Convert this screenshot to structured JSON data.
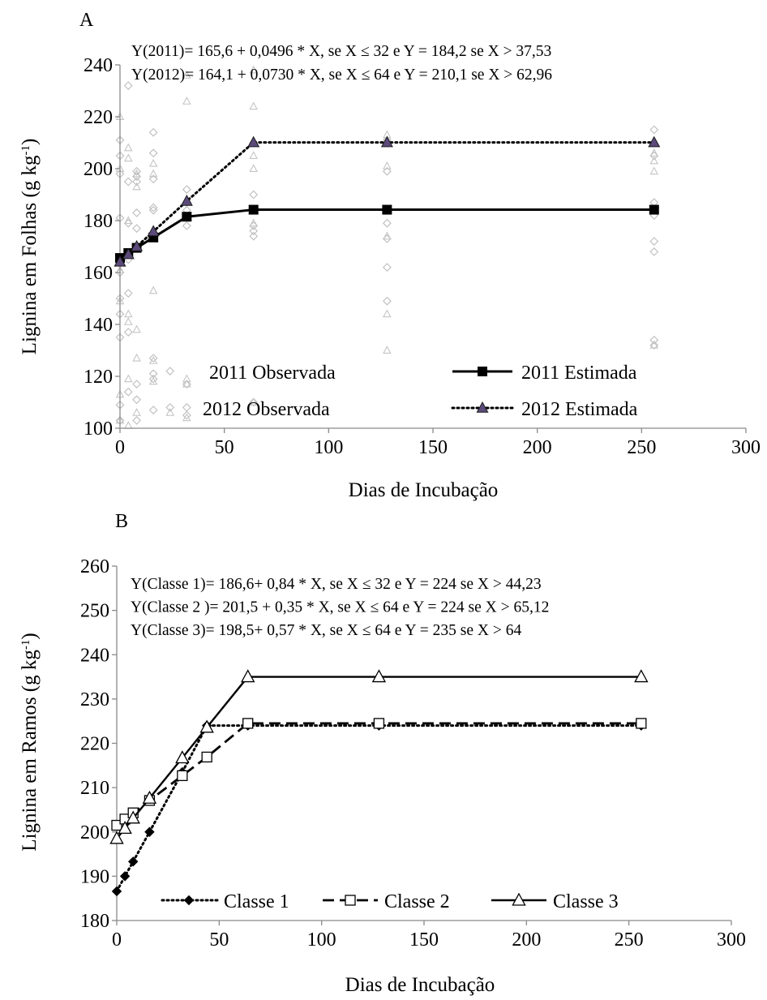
{
  "chart_data": [
    {
      "type": "scatter",
      "panel_label": "A",
      "xlabel": "Dias de Incubação",
      "ylabel": "Lignina em Folhas (g kg-1)",
      "ylabel_main": "Lignina em Folhas (g kg",
      "ylabel_sup": "-1",
      "ylabel_end": ")",
      "xlim": [
        0,
        300
      ],
      "ylim": [
        100,
        240
      ],
      "xticks": [
        0,
        50,
        100,
        150,
        200,
        250,
        300
      ],
      "yticks": [
        100,
        120,
        140,
        160,
        180,
        200,
        220,
        240
      ],
      "grid": false,
      "legend_position": "bottom",
      "equations": [
        "Y(2011)= 165,6 + 0,0496 * X, se X ≤ 32 e Y = 184,2 se X > 37,53",
        "Y(2012)= 164,1 + 0,0730 * X, se X ≤ 64 e Y = 210,1 se  X > 62,96"
      ],
      "observed": [
        {
          "name": "2011 Observada",
          "marker": "diamond",
          "color": "#bdbdbd",
          "points": [
            [
              0,
              103
            ],
            [
              0,
              109
            ],
            [
              0,
              135
            ],
            [
              0,
              144
            ],
            [
              0,
              150
            ],
            [
              0,
              160
            ],
            [
              0,
              181
            ],
            [
              0,
              198
            ],
            [
              0,
              205
            ],
            [
              0,
              211
            ],
            [
              4,
              114
            ],
            [
              4,
              137
            ],
            [
              4,
              152
            ],
            [
              4,
              165
            ],
            [
              4,
              179
            ],
            [
              4,
              195
            ],
            [
              4,
              232
            ],
            [
              8,
              103
            ],
            [
              8,
              111
            ],
            [
              8,
              117
            ],
            [
              8,
              170
            ],
            [
              8,
              177
            ],
            [
              8,
              183
            ],
            [
              8,
              195
            ],
            [
              8,
              197
            ],
            [
              8,
              199
            ],
            [
              16,
              107
            ],
            [
              16,
              119
            ],
            [
              16,
              121
            ],
            [
              16,
              127
            ],
            [
              16,
              184
            ],
            [
              16,
              185
            ],
            [
              16,
              196
            ],
            [
              16,
              206
            ],
            [
              16,
              214
            ],
            [
              24,
              108
            ],
            [
              24,
              122
            ],
            [
              32,
              105
            ],
            [
              32,
              108
            ],
            [
              32,
              117
            ],
            [
              32,
              178
            ],
            [
              32,
              184
            ],
            [
              32,
              187
            ],
            [
              32,
              192
            ],
            [
              64,
              110
            ],
            [
              64,
              174
            ],
            [
              64,
              176
            ],
            [
              64,
              178
            ],
            [
              64,
              190
            ],
            [
              64,
              210
            ],
            [
              128,
              149
            ],
            [
              128,
              162
            ],
            [
              128,
              173
            ],
            [
              128,
              179
            ],
            [
              128,
              199
            ],
            [
              128,
              211
            ],
            [
              256,
              132
            ],
            [
              256,
              134
            ],
            [
              256,
              168
            ],
            [
              256,
              172
            ],
            [
              256,
              182
            ],
            [
              256,
              187
            ],
            [
              256,
              205
            ],
            [
              256,
              215
            ]
          ]
        },
        {
          "name": "2012 Observada",
          "marker": "triangle",
          "color": "#c4c4c4",
          "points": [
            [
              0,
              103
            ],
            [
              0,
              113
            ],
            [
              0,
              149
            ],
            [
              0,
              161
            ],
            [
              0,
              200
            ],
            [
              0,
              220
            ],
            [
              4,
              101
            ],
            [
              4,
              119
            ],
            [
              4,
              141
            ],
            [
              4,
              144
            ],
            [
              4,
              180
            ],
            [
              4,
              204
            ],
            [
              4,
              208
            ],
            [
              8,
              106
            ],
            [
              8,
              127
            ],
            [
              8,
              138
            ],
            [
              8,
              193
            ],
            [
              8,
              198
            ],
            [
              16,
              118
            ],
            [
              16,
              126
            ],
            [
              16,
              153
            ],
            [
              16,
              198
            ],
            [
              16,
              202
            ],
            [
              24,
              106
            ],
            [
              32,
              104
            ],
            [
              32,
              117
            ],
            [
              32,
              119
            ],
            [
              32,
              226
            ],
            [
              32,
              236
            ],
            [
              64,
              110
            ],
            [
              64,
              179
            ],
            [
              64,
              200
            ],
            [
              64,
              205
            ],
            [
              64,
              224
            ],
            [
              64,
              238
            ],
            [
              128,
              130
            ],
            [
              128,
              144
            ],
            [
              128,
              174
            ],
            [
              128,
              201
            ],
            [
              128,
              213
            ],
            [
              256,
              132
            ],
            [
              256,
              199
            ],
            [
              256,
              203
            ],
            [
              256,
              206
            ],
            [
              256,
              210
            ]
          ]
        }
      ],
      "series": [
        {
          "name": "2011 Estimada",
          "marker": "square",
          "line": "solid",
          "x": [
            0,
            4,
            8,
            16,
            32,
            64,
            128,
            256
          ],
          "y": [
            165.6,
            167.5,
            169.5,
            173.5,
            181.5,
            184.2,
            184.2,
            184.2
          ]
        },
        {
          "name": "2012 Estimada",
          "marker": "triangle",
          "line": "dotted",
          "x": [
            0,
            4,
            8,
            16,
            32,
            64,
            128,
            256
          ],
          "y": [
            164.1,
            167.0,
            170.0,
            175.8,
            187.5,
            210.1,
            210.1,
            210.1
          ]
        }
      ]
    },
    {
      "type": "line",
      "panel_label": "B",
      "xlabel": "Dias de Incubação",
      "ylabel": "Lignina em  Ramos (g kg-1)",
      "ylabel_main": "Lignina em  Ramos (g kg",
      "ylabel_sup": "-1",
      "ylabel_end": ")",
      "xlim": [
        0,
        300
      ],
      "ylim": [
        180,
        260
      ],
      "xticks": [
        0,
        50,
        100,
        150,
        200,
        250,
        300
      ],
      "yticks": [
        180,
        190,
        200,
        210,
        220,
        230,
        240,
        250,
        260
      ],
      "grid": false,
      "legend_position": "bottom",
      "equations": [
        "Y(Classe 1)= 186,6+ 0,84 * X, se X ≤ 32 e Y = 224 se X > 44,23",
        "Y(Classe 2 )= 201,5 + 0,35 * X, se X ≤ 64 e Y = 224 se  X > 65,12",
        "Y(Classe 3)= 198,5+ 0,57 * X, se X ≤ 64 e Y = 235 se  X > 64"
      ],
      "series": [
        {
          "name": "Classe 1",
          "marker": "diamond",
          "line": "dotted",
          "x": [
            0,
            4,
            8,
            16,
            32,
            44,
            64,
            128,
            256
          ],
          "y": [
            186.6,
            190.0,
            193.3,
            200.0,
            213.5,
            224,
            224,
            224,
            224
          ]
        },
        {
          "name": "Classe  2",
          "marker": "open-square",
          "line": "dashed",
          "x": [
            0,
            4,
            8,
            16,
            32,
            44,
            64,
            128,
            256
          ],
          "y": [
            201.5,
            202.9,
            204.3,
            207.1,
            212.7,
            216.9,
            224.5,
            224.5,
            224.5
          ]
        },
        {
          "name": "Classe  3",
          "marker": "open-triangle",
          "line": "solid",
          "x": [
            0,
            4,
            8,
            16,
            32,
            44,
            64,
            128,
            256
          ],
          "y": [
            198.5,
            200.8,
            203.1,
            207.6,
            216.7,
            223.6,
            235,
            235,
            235
          ]
        }
      ]
    }
  ]
}
